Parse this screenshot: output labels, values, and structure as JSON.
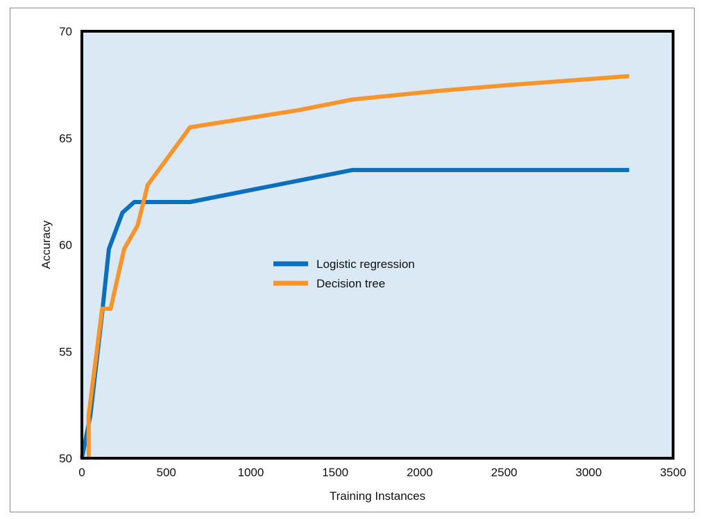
{
  "chart_data": {
    "type": "line",
    "title": "",
    "xlabel": "Training Instances",
    "ylabel": "Accuracy",
    "xlim": [
      0,
      3500
    ],
    "ylim": [
      50,
      70
    ],
    "xticks": [
      0,
      500,
      1000,
      1500,
      2000,
      2500,
      3000,
      3500
    ],
    "yticks": [
      50,
      55,
      60,
      65,
      70
    ],
    "grid": false,
    "legend_placement": "center",
    "background_color": "#dae9f4",
    "series": [
      {
        "name": "Logistic regression",
        "color": "#0a6fbd",
        "x": [
          0,
          50,
          120,
          160,
          240,
          310,
          640,
          1280,
          1600,
          3240
        ],
        "y": [
          50.0,
          52.0,
          56.8,
          59.8,
          61.5,
          62.0,
          62.0,
          63.0,
          63.5,
          63.5
        ]
      },
      {
        "name": "Decision tree",
        "color": "#f7952b",
        "x": [
          40,
          40,
          120,
          170,
          250,
          330,
          390,
          640,
          1280,
          1600,
          2100,
          2560,
          3240
        ],
        "y": [
          50.0,
          52.0,
          57.0,
          57.0,
          59.8,
          60.9,
          62.8,
          65.5,
          66.3,
          66.8,
          67.2,
          67.5,
          67.9
        ]
      }
    ]
  }
}
